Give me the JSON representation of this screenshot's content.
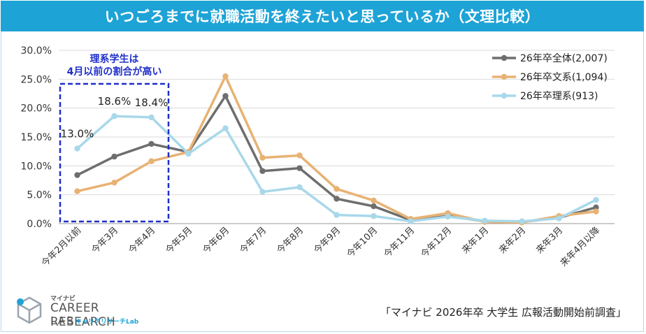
{
  "header": {
    "title": "いつごろまでに就職活動を終えたいと思っているか（文理比較）"
  },
  "chart_data": {
    "type": "line",
    "title": "いつごろまでに就職活動を終えたいと思っているか（文理比較）",
    "categories": [
      "今年2月以前",
      "今年3月",
      "今年4月",
      "今年5月",
      "今年6月",
      "今年7月",
      "今年8月",
      "今年9月",
      "今年10月",
      "今年11月",
      "今年12月",
      "来年1月",
      "来年2月",
      "来年3月",
      "来年4月以降"
    ],
    "yticks": [
      "0.0%",
      "5.0%",
      "10.0%",
      "15.0%",
      "20.0%",
      "25.0%",
      "30.0%"
    ],
    "ylim": [
      0,
      30
    ],
    "legend_position": "top-right",
    "series": [
      {
        "name": "26年卒全体(2,007)",
        "color": "#6e6e6e",
        "values": [
          8.4,
          11.6,
          13.8,
          12.4,
          22.1,
          9.1,
          9.6,
          4.3,
          3.0,
          0.6,
          1.3,
          0.4,
          0.3,
          1.0,
          2.8
        ]
      },
      {
        "name": "26年卒文系(1,094)",
        "color": "#e8b274",
        "values": [
          5.6,
          7.1,
          10.8,
          12.4,
          25.5,
          11.4,
          11.8,
          6.0,
          4.0,
          0.8,
          1.8,
          0.3,
          0.2,
          1.3,
          2.1
        ]
      },
      {
        "name": "26年卒理系(913)",
        "color": "#a8d8ea",
        "values": [
          13.0,
          18.6,
          18.4,
          12.1,
          16.5,
          5.5,
          6.3,
          1.5,
          1.3,
          0.4,
          1.2,
          0.5,
          0.4,
          0.9,
          4.1
        ]
      }
    ],
    "data_labels": [
      {
        "series": 2,
        "index": 0,
        "text": "13.0%"
      },
      {
        "series": 2,
        "index": 1,
        "text": "18.6%"
      },
      {
        "series": 2,
        "index": 2,
        "text": "18.4%"
      }
    ],
    "annotation": {
      "lines": [
        "理系学生は",
        "4月以前の割合が高い"
      ],
      "color": "#1f2fc9"
    }
  },
  "footer": {
    "source": "「マイナビ 2026年卒 大学生 広報活動開始前調査」",
    "logo_sub": "マイナビ",
    "logo_main": "CAREER RESEARCH",
    "logo_lab": "LAB",
    "logo_kana": "キャリアリサーチLab"
  }
}
